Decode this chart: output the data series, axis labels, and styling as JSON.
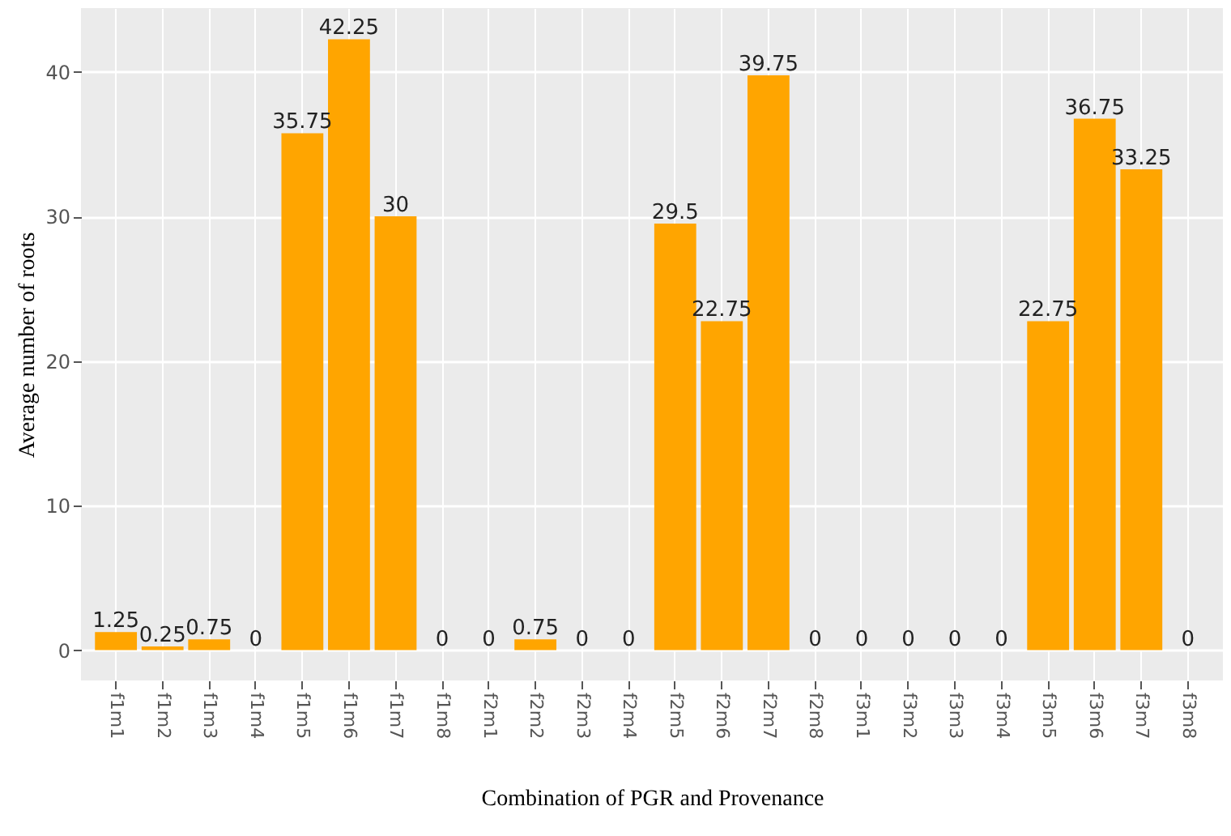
{
  "chart_data": {
    "type": "bar",
    "xlabel": "Combination of PGR and Provenance",
    "ylabel": "Average number  of  roots",
    "categories": [
      "f1m1",
      "f1m2",
      "f1m3",
      "f1m4",
      "f1m5",
      "f1m6",
      "f1m7",
      "f1m8",
      "f2m1",
      "f2m2",
      "f2m3",
      "f2m4",
      "f2m5",
      "f2m6",
      "f2m7",
      "f2m8",
      "f3m1",
      "f3m2",
      "f3m3",
      "f3m4",
      "f3m5",
      "f3m6",
      "f3m7",
      "f3m8"
    ],
    "values": [
      1.25,
      0.25,
      0.75,
      0,
      35.75,
      42.25,
      30,
      0,
      0,
      0.75,
      0,
      0,
      29.5,
      22.75,
      39.75,
      0,
      0,
      0,
      0,
      0,
      22.75,
      36.75,
      33.25,
      0
    ],
    "color": "#ffa500",
    "ylim": [
      -2.1,
      44.4
    ],
    "yticks": [
      0,
      10,
      20,
      30,
      40
    ],
    "grid": true,
    "data_labels": true
  }
}
